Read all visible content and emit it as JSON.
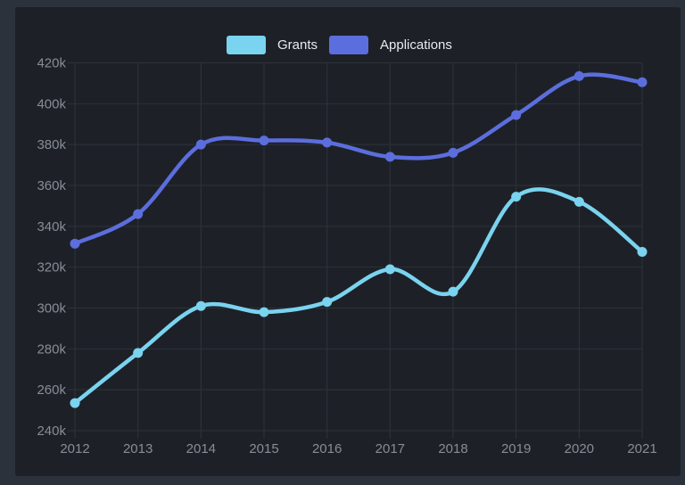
{
  "theme": {
    "outer_background": "#2c323b",
    "panel_background": "#1d2127",
    "grid_color": "#2d333b",
    "axis_label_color": "#878d95",
    "legend_text_color": "#e8ebee"
  },
  "legend": {
    "items": [
      {
        "label": "Grants"
      },
      {
        "label": "Applications"
      }
    ]
  },
  "chart_data": {
    "type": "line",
    "title": "",
    "xlabel": "",
    "ylabel": "",
    "smooth": true,
    "grid": true,
    "point_markers": true,
    "legend_position": "top-center",
    "categories": [
      "2012",
      "2013",
      "2014",
      "2015",
      "2016",
      "2017",
      "2018",
      "2019",
      "2020",
      "2021"
    ],
    "series": [
      {
        "name": "Grants",
        "color": "#7ad3ef",
        "values": [
          253500,
          278000,
          301000,
          298000,
          303000,
          319000,
          308000,
          354500,
          352000,
          327500
        ]
      },
      {
        "name": "Applications",
        "color": "#5c6edd",
        "values": [
          331500,
          346000,
          380000,
          382000,
          381000,
          374000,
          376000,
          394500,
          413500,
          410500
        ]
      }
    ],
    "ylim": [
      240000,
      420000
    ],
    "ytick_step": 20000,
    "ytick_values": [
      240000,
      260000,
      280000,
      300000,
      320000,
      340000,
      360000,
      380000,
      400000,
      420000
    ],
    "ytick_labels": [
      "240k",
      "260k",
      "280k",
      "300k",
      "320k",
      "340k",
      "360k",
      "380k",
      "400k",
      "420k"
    ]
  }
}
